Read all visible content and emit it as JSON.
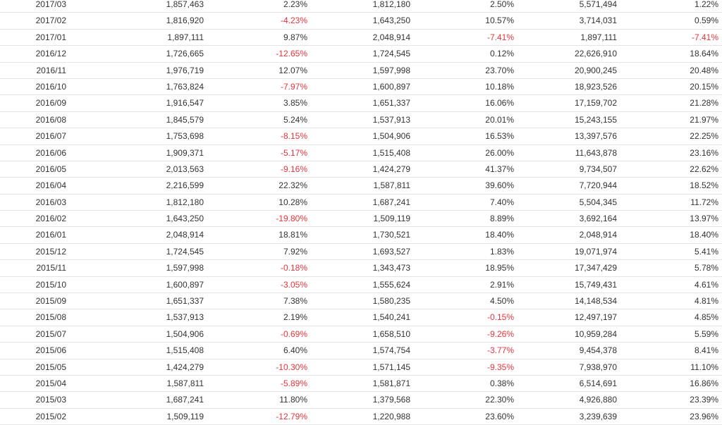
{
  "colors": {
    "text": "#333333",
    "negative": "#e8343b",
    "border": "#e4e4e4"
  },
  "rows": [
    [
      "2017/03",
      "1,857,463",
      "2.23%",
      "1,812,180",
      "2.50%",
      "5,571,494",
      "1.22%"
    ],
    [
      "2017/02",
      "1,816,920",
      "-4.23%",
      "1,643,250",
      "10.57%",
      "3,714,031",
      "0.59%"
    ],
    [
      "2017/01",
      "1,897,111",
      "9.87%",
      "2,048,914",
      "-7.41%",
      "1,897,111",
      "-7.41%"
    ],
    [
      "2016/12",
      "1,726,665",
      "-12.65%",
      "1,724,545",
      "0.12%",
      "22,626,910",
      "18.64%"
    ],
    [
      "2016/11",
      "1,976,719",
      "12.07%",
      "1,597,998",
      "23.70%",
      "20,900,245",
      "20.48%"
    ],
    [
      "2016/10",
      "1,763,824",
      "-7.97%",
      "1,600,897",
      "10.18%",
      "18,923,526",
      "20.15%"
    ],
    [
      "2016/09",
      "1,916,547",
      "3.85%",
      "1,651,337",
      "16.06%",
      "17,159,702",
      "21.28%"
    ],
    [
      "2016/08",
      "1,845,579",
      "5.24%",
      "1,537,913",
      "20.01%",
      "15,243,155",
      "21.97%"
    ],
    [
      "2016/07",
      "1,753,698",
      "-8.15%",
      "1,504,906",
      "16.53%",
      "13,397,576",
      "22.25%"
    ],
    [
      "2016/06",
      "1,909,371",
      "-5.17%",
      "1,515,408",
      "26.00%",
      "11,643,878",
      "23.16%"
    ],
    [
      "2016/05",
      "2,013,563",
      "-9.16%",
      "1,424,279",
      "41.37%",
      "9,734,507",
      "22.62%"
    ],
    [
      "2016/04",
      "2,216,599",
      "22.32%",
      "1,587,811",
      "39.60%",
      "7,720,944",
      "18.52%"
    ],
    [
      "2016/03",
      "1,812,180",
      "10.28%",
      "1,687,241",
      "7.40%",
      "5,504,345",
      "11.72%"
    ],
    [
      "2016/02",
      "1,643,250",
      "-19.80%",
      "1,509,119",
      "8.89%",
      "3,692,164",
      "13.97%"
    ],
    [
      "2016/01",
      "2,048,914",
      "18.81%",
      "1,730,521",
      "18.40%",
      "2,048,914",
      "18.40%"
    ],
    [
      "2015/12",
      "1,724,545",
      "7.92%",
      "1,693,527",
      "1.83%",
      "19,071,974",
      "5.41%"
    ],
    [
      "2015/11",
      "1,597,998",
      "-0.18%",
      "1,343,473",
      "18.95%",
      "17,347,429",
      "5.78%"
    ],
    [
      "2015/10",
      "1,600,897",
      "-3.05%",
      "1,555,624",
      "2.91%",
      "15,749,431",
      "4.61%"
    ],
    [
      "2015/09",
      "1,651,337",
      "7.38%",
      "1,580,235",
      "4.50%",
      "14,148,534",
      "4.81%"
    ],
    [
      "2015/08",
      "1,537,913",
      "2.19%",
      "1,540,241",
      "-0.15%",
      "12,497,197",
      "4.85%"
    ],
    [
      "2015/07",
      "1,504,906",
      "-0.69%",
      "1,658,510",
      "-9.26%",
      "10,959,284",
      "5.59%"
    ],
    [
      "2015/06",
      "1,515,408",
      "6.40%",
      "1,574,754",
      "-3.77%",
      "9,454,378",
      "8.41%"
    ],
    [
      "2015/05",
      "1,424,279",
      "-10.30%",
      "1,571,145",
      "-9.35%",
      "7,938,970",
      "11.10%"
    ],
    [
      "2015/04",
      "1,587,811",
      "-5.89%",
      "1,581,871",
      "0.38%",
      "6,514,691",
      "16.86%"
    ],
    [
      "2015/03",
      "1,687,241",
      "11.80%",
      "1,379,568",
      "22.30%",
      "4,926,880",
      "23.39%"
    ],
    [
      "2015/02",
      "1,509,119",
      "-12.79%",
      "1,220,988",
      "23.60%",
      "3,239,639",
      "23.96%"
    ]
  ]
}
